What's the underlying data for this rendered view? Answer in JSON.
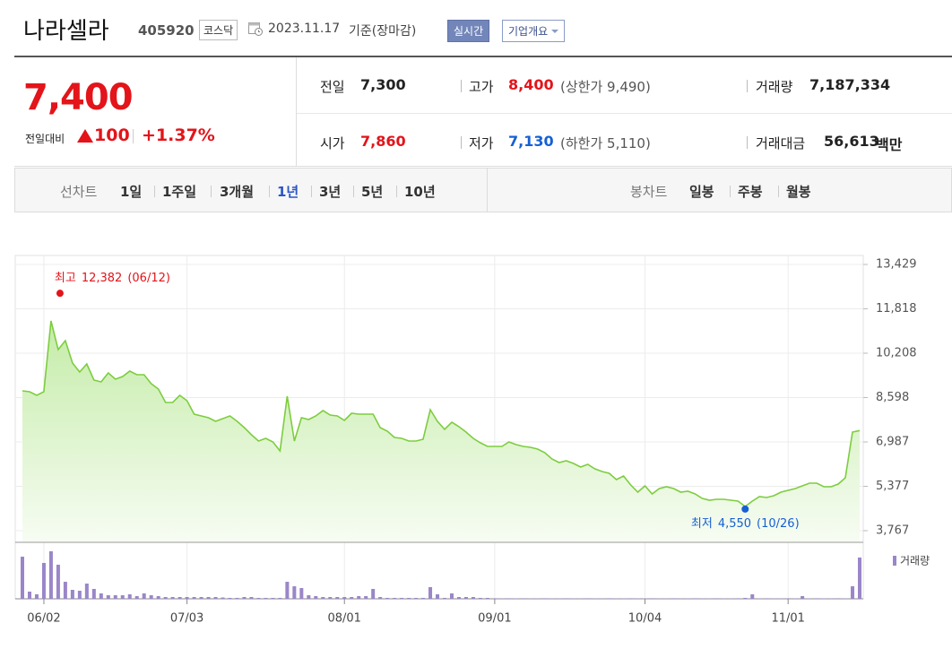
{
  "header": {
    "name": "나라셀라",
    "code": "405920",
    "market": "코스닥",
    "date": "2023.11.17",
    "basis": "기준(장마감)",
    "buttons": [
      "실시간",
      "기업개요"
    ]
  },
  "quote": {
    "price": "7,400",
    "change_label": "전일대비",
    "change": "100",
    "change_rate": "+1.37%",
    "stats": [
      {
        "label": "전일",
        "value": "7,300"
      },
      {
        "label": "고가",
        "value": "8,400",
        "note": "(상한가 9,490)"
      },
      {
        "label": "거래량",
        "value": "7,187,334"
      },
      {
        "label": "시가",
        "value": "7,860"
      },
      {
        "label": "저가",
        "value": "7,130",
        "note": "(하한가 5,110)"
      },
      {
        "label": "거래대금",
        "value": "56,613",
        "unit": "백만"
      }
    ]
  },
  "tabs": {
    "line_label": "선차트",
    "line_periods": [
      "1일",
      "1주일",
      "3개월",
      "1년",
      "3년",
      "5년",
      "10년"
    ],
    "candle_label": "봉차트",
    "candle_periods": [
      "일봉",
      "주봉",
      "월봉"
    ]
  },
  "chart_data": {
    "type": "line",
    "color": "#7dcd3e",
    "grid": true,
    "categories": [
      null,
      null,
      null,
      "06/02",
      null,
      null,
      null,
      null,
      null,
      null,
      null,
      null,
      null,
      null,
      null,
      null,
      null,
      null,
      null,
      null,
      null,
      null,
      null,
      "07/03",
      null,
      null,
      null,
      null,
      null,
      null,
      null,
      null,
      null,
      null,
      null,
      null,
      null,
      null,
      null,
      null,
      null,
      null,
      null,
      null,
      null,
      "08/01",
      null,
      null,
      null,
      null,
      null,
      null,
      null,
      null,
      null,
      null,
      null,
      null,
      null,
      null,
      null,
      null,
      null,
      null,
      null,
      null,
      "09/01",
      null,
      null,
      null,
      null,
      null,
      null,
      null,
      null,
      null,
      null,
      null,
      null,
      null,
      null,
      null,
      null,
      null,
      null,
      null,
      null,
      "10/04",
      null,
      null,
      null,
      null,
      null,
      null,
      null,
      null,
      null,
      null,
      null,
      null,
      null,
      null,
      null,
      null,
      null,
      null,
      null,
      "11/01",
      null,
      null,
      null,
      null,
      null,
      null,
      null,
      null,
      null,
      null
    ],
    "values": [
      8842,
      8810,
      8680,
      8810,
      11380,
      10340,
      10664,
      9850,
      9525,
      9818,
      9232,
      9167,
      9493,
      9265,
      9363,
      9558,
      9428,
      9428,
      9102,
      8907,
      8419,
      8419,
      8680,
      8484,
      7997,
      7932,
      7866,
      7736,
      7834,
      7932,
      7736,
      7508,
      7248,
      7020,
      7118,
      6988,
      6663,
      8647,
      7020,
      7866,
      7801,
      7932,
      8127,
      7964,
      7932,
      7769,
      8029,
      7997,
      7997,
      7997,
      7508,
      7378,
      7151,
      7118,
      7020,
      7020,
      7085,
      8159,
      7736,
      7443,
      7703,
      7541,
      7346,
      7118,
      6955,
      6825,
      6825,
      6825,
      6988,
      6890,
      6825,
      6793,
      6728,
      6598,
      6370,
      6240,
      6305,
      6207,
      6077,
      6175,
      6012,
      5915,
      5850,
      5622,
      5752,
      5427,
      5166,
      5394,
      5101,
      5296,
      5361,
      5296,
      5166,
      5199,
      5101,
      4938,
      4873,
      4906,
      4906,
      4873,
      4841,
      4646,
      4841,
      5003,
      4971,
      5036,
      5166,
      5231,
      5296,
      5394,
      5492,
      5492,
      5361,
      5361,
      5459,
      5687,
      7346,
      7400
    ],
    "ylim": [
      3767,
      13429
    ],
    "yticks": [
      {
        "value": 3767,
        "label": "3,767"
      },
      {
        "value": 5377,
        "label": "5,377"
      },
      {
        "value": 6987,
        "label": "6,987"
      },
      {
        "value": 8598,
        "label": "8,598"
      },
      {
        "value": 10208,
        "label": "10,208"
      },
      {
        "value": 11818,
        "label": "11,818"
      },
      {
        "value": 13429,
        "label": "13,429"
      }
    ],
    "annotations": [
      {
        "label": "최고",
        "value": 12382,
        "value_label": "12,382",
        "date": "(06/12)",
        "color": "#e3141a"
      },
      {
        "label": "최저",
        "value": 4550,
        "value_label": "4,550",
        "date": "(10/26)",
        "color": "#1560d4"
      }
    ],
    "volume": {
      "name": "거래량",
      "color": "#9a86c8",
      "values": [
        7330000,
        1250000,
        780000,
        6240000,
        8270000,
        5930000,
        2960000,
        1560000,
        1400000,
        2650000,
        1720000,
        940000,
        620000,
        620000,
        620000,
        780000,
        470000,
        940000,
        620000,
        470000,
        310000,
        310000,
        310000,
        310000,
        310000,
        310000,
        310000,
        310000,
        230000,
        160000,
        160000,
        310000,
        310000,
        160000,
        160000,
        160000,
        160000,
        2960000,
        2180000,
        1870000,
        620000,
        470000,
        310000,
        310000,
        310000,
        310000,
        310000,
        470000,
        470000,
        1720000,
        310000,
        160000,
        160000,
        160000,
        160000,
        160000,
        160000,
        2030000,
        780000,
        160000,
        940000,
        310000,
        310000,
        310000,
        160000,
        160000,
        90000,
        80000,
        90000,
        80000,
        90000,
        80000,
        80000,
        90000,
        80000,
        80000,
        90000,
        80000,
        80000,
        90000,
        80000,
        80000,
        90000,
        80000,
        80000,
        90000,
        80000,
        80000,
        90000,
        80000,
        80000,
        90000,
        80000,
        80000,
        90000,
        80000,
        80000,
        90000,
        80000,
        80000,
        90000,
        160000,
        780000,
        80000,
        90000,
        80000,
        80000,
        90000,
        80000,
        470000,
        80000,
        90000,
        80000,
        80000,
        90000,
        80000,
        2180000,
        7187334
      ]
    }
  }
}
